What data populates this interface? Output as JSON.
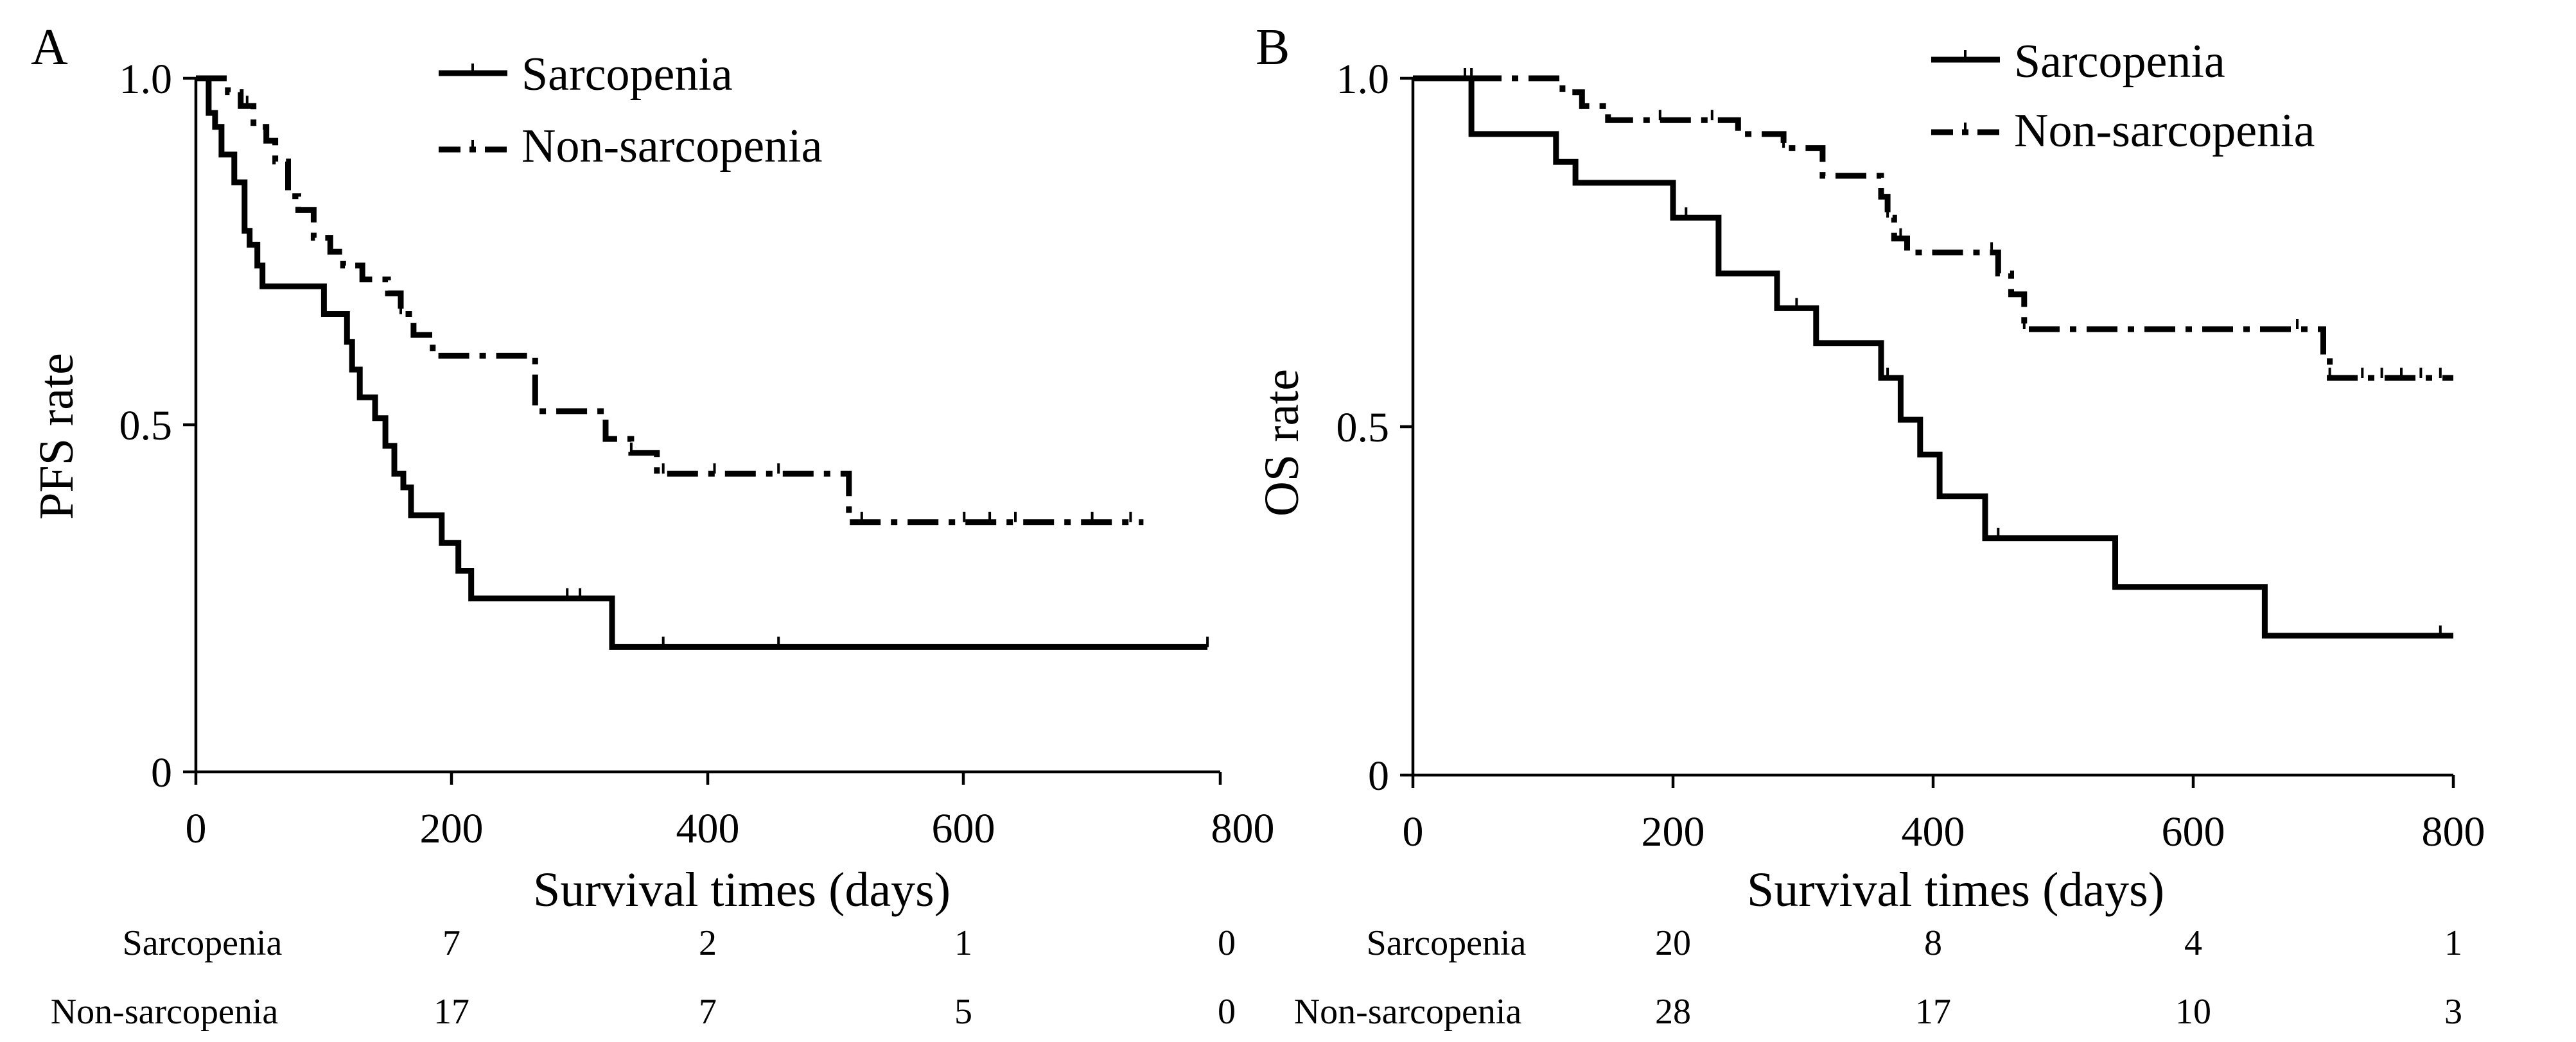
{
  "chart_data": [
    {
      "type": "line",
      "panel": "A",
      "xlabel": "Survival times (days)",
      "ylabel": "PFS rate",
      "xlim": [
        0,
        800
      ],
      "ylim": [
        0,
        1
      ],
      "x_ticks": [
        "0",
        "200",
        "400",
        "600",
        "800"
      ],
      "y_ticks": [
        "0",
        "0.5",
        "1.0"
      ],
      "legend_position": "top-right",
      "series": [
        {
          "name": "Sarcopenia",
          "style": "solid",
          "x": [
            0,
            10,
            15,
            20,
            30,
            38,
            42,
            48,
            52,
            100,
            118,
            122,
            128,
            132,
            140,
            148,
            155,
            162,
            168,
            180,
            192,
            205,
            215,
            230,
            260,
            325,
            360,
            460,
            790
          ],
          "y": [
            1.0,
            0.95,
            0.93,
            0.89,
            0.85,
            0.78,
            0.76,
            0.73,
            0.7,
            0.66,
            0.62,
            0.58,
            0.54,
            0.54,
            0.51,
            0.47,
            0.43,
            0.41,
            0.37,
            0.37,
            0.33,
            0.29,
            0.25,
            0.25,
            0.25,
            0.18,
            0.18,
            0.18,
            0.18
          ],
          "censored_x": [
            290,
            300,
            365,
            455,
            790
          ]
        },
        {
          "name": "Non-sarcopenia",
          "style": "dash-dot",
          "x": [
            0,
            25,
            35,
            45,
            55,
            62,
            72,
            80,
            92,
            105,
            115,
            130,
            150,
            160,
            170,
            185,
            205,
            230,
            265,
            290,
            310,
            320,
            340,
            360,
            400,
            510,
            530,
            600,
            660,
            740
          ],
          "y": [
            1.0,
            0.98,
            0.96,
            0.93,
            0.91,
            0.88,
            0.83,
            0.81,
            0.77,
            0.75,
            0.73,
            0.71,
            0.69,
            0.66,
            0.63,
            0.6,
            0.6,
            0.6,
            0.52,
            0.52,
            0.52,
            0.48,
            0.46,
            0.43,
            0.43,
            0.36,
            0.36,
            0.36,
            0.36,
            0.36
          ],
          "censored_x": [
            40,
            160,
            320,
            340,
            365,
            405,
            455,
            520,
            600,
            620,
            640,
            700,
            730
          ]
        }
      ],
      "risk_table": {
        "rows": [
          {
            "name": "Sarcopenia",
            "values": [
              "7",
              "2",
              "1",
              "0"
            ]
          },
          {
            "name": "Non-sarcopenia",
            "values": [
              "17",
              "7",
              "5",
              "0"
            ]
          }
        ],
        "time_points": [
          200,
          400,
          600,
          800
        ]
      }
    },
    {
      "type": "line",
      "panel": "B",
      "xlabel": "Survival times (days)",
      "ylabel": "OS rate",
      "xlim": [
        0,
        800
      ],
      "ylim": [
        0,
        1
      ],
      "x_ticks": [
        "0",
        "200",
        "400",
        "600",
        "800"
      ],
      "y_ticks": [
        "0",
        "0.5",
        "1.0"
      ],
      "legend_position": "top-right",
      "series": [
        {
          "name": "Sarcopenia",
          "style": "solid",
          "x": [
            0,
            45,
            110,
            125,
            200,
            235,
            280,
            310,
            350,
            360,
            375,
            390,
            405,
            440,
            540,
            655,
            800
          ],
          "y": [
            1.0,
            0.92,
            0.88,
            0.85,
            0.8,
            0.72,
            0.67,
            0.62,
            0.62,
            0.57,
            0.51,
            0.46,
            0.4,
            0.34,
            0.27,
            0.2,
            0.2
          ],
          "censored_x": [
            40,
            210,
            295,
            365,
            450,
            790
          ]
        },
        {
          "name": "Non-sarcopenia",
          "style": "dash-dot",
          "x": [
            0,
            115,
            130,
            150,
            170,
            230,
            250,
            285,
            315,
            355,
            360,
            365,
            370,
            380,
            395,
            410,
            450,
            460,
            470,
            700,
            705,
            800
          ],
          "y": [
            1.0,
            0.98,
            0.96,
            0.94,
            0.94,
            0.94,
            0.92,
            0.9,
            0.86,
            0.86,
            0.83,
            0.8,
            0.77,
            0.75,
            0.75,
            0.75,
            0.72,
            0.69,
            0.64,
            0.6,
            0.57,
            0.57
          ],
          "censored_x": [
            45,
            130,
            190,
            230,
            285,
            365,
            375,
            445,
            470,
            680,
            705,
            730,
            745,
            760,
            775,
            790
          ]
        }
      ],
      "risk_table": {
        "rows": [
          {
            "name": "Sarcopenia",
            "values": [
              "20",
              "8",
              "4",
              "1"
            ]
          },
          {
            "name": "Non-sarcopenia",
            "values": [
              "28",
              "17",
              "10",
              "3"
            ]
          }
        ],
        "time_points": [
          200,
          400,
          600,
          800
        ]
      }
    }
  ]
}
